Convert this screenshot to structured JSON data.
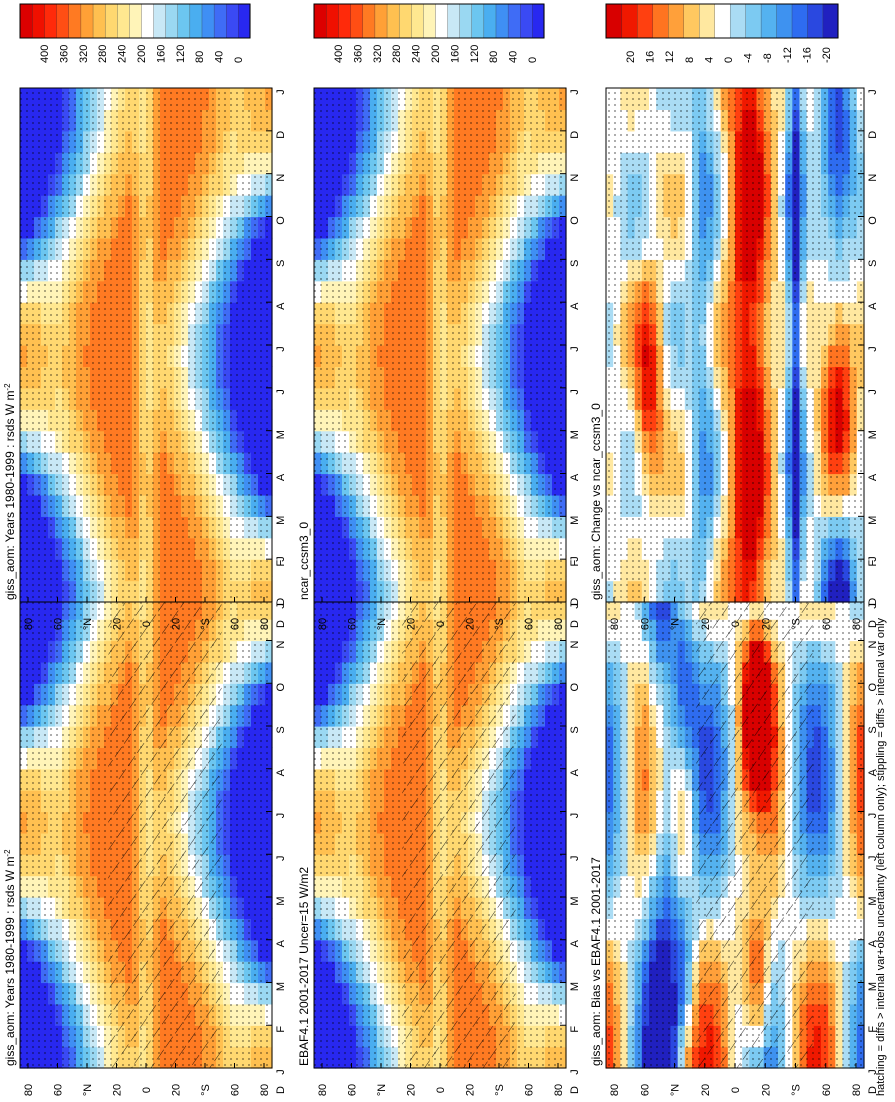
{
  "footer_note": "hatching = diffs > internal var+obs uncertainty (left column only); stippling = diffs > internal var only",
  "palette": {
    "absolute": [
      "#2828f0",
      "#3a4af4",
      "#3f6cf6",
      "#3f8ff4",
      "#4aaef0",
      "#6cc6f0",
      "#9ad8f2",
      "#c8e8f6",
      "#ffffff",
      "#fff4b8",
      "#ffe890",
      "#ffd870",
      "#ffc050",
      "#ffa036",
      "#ff7a22",
      "#ff4e14",
      "#ff2a0a",
      "#f01000",
      "#dc0000"
    ],
    "difference": [
      "#2020c0",
      "#2a48e0",
      "#2e6cf0",
      "#3e92f0",
      "#54b2f0",
      "#7ccaf2",
      "#aadcf4",
      "#ffffff",
      "#ffe8a0",
      "#ffc860",
      "#ffa03a",
      "#ff7420",
      "#ff4010",
      "#f01800",
      "#d80000"
    ]
  },
  "chart_data": [
    {
      "type": "heatmap",
      "title": "giss_aom: Years 1980-1999 : rsds W m",
      "title_sup": "-2",
      "variable": "rsds",
      "x_ticks": [
        "J",
        "F",
        "M",
        "A",
        "M",
        "J",
        "J",
        "A",
        "S",
        "O",
        "N",
        "D",
        "J"
      ],
      "y_ticks": [
        "80",
        "60",
        "°N",
        "20",
        "0",
        "20",
        "°S",
        "60",
        "80"
      ],
      "y_corner_label": "D",
      "colorbar": {
        "labels": [
          "400",
          "360",
          "320",
          "280",
          "240",
          "200",
          "160",
          "120",
          "80",
          "40",
          "0"
        ],
        "range": [
          0,
          420
        ]
      },
      "stippling": true,
      "hatching": true
    },
    {
      "type": "heatmap",
      "title": "giss_aom: Years 1980-1999 : rsds W m",
      "title_sup": "-2",
      "variable": "rsds",
      "x_ticks": [
        "J",
        "F",
        "M",
        "A",
        "M",
        "J",
        "J",
        "A",
        "S",
        "O",
        "N",
        "D",
        "J"
      ],
      "y_ticks": [
        "80",
        "60",
        "°N",
        "20",
        "0",
        "20",
        "°S",
        "60",
        "80"
      ],
      "y_corner_label": "D",
      "colorbar": {
        "labels": [
          "400",
          "360",
          "320",
          "280",
          "240",
          "200",
          "160",
          "120",
          "80",
          "40",
          "0"
        ],
        "range": [
          0,
          420
        ]
      },
      "stippling": true,
      "hatching": false
    },
    {
      "type": "heatmap",
      "title": "EBAF4.1 2001-2017 Uncer=15 W/m2",
      "title_sup": "",
      "variable": "rsds",
      "x_ticks": [
        "J",
        "F",
        "M",
        "A",
        "M",
        "J",
        "J",
        "A",
        "S",
        "O",
        "N",
        "D",
        "J"
      ],
      "y_ticks": [
        "80",
        "60",
        "°N",
        "20",
        "0",
        "20",
        "°S",
        "60",
        "80"
      ],
      "y_corner_label": "D",
      "colorbar": {
        "labels": [
          "400",
          "360",
          "320",
          "280",
          "240",
          "200",
          "160",
          "120",
          "80",
          "40",
          "0"
        ],
        "range": [
          0,
          420
        ]
      },
      "stippling": true,
      "hatching": true
    },
    {
      "type": "heatmap",
      "title": "ncar_ccsm3_0",
      "title_sup": "",
      "variable": "rsds",
      "x_ticks": [
        "J",
        "F",
        "M",
        "A",
        "M",
        "J",
        "J",
        "A",
        "S",
        "O",
        "N",
        "D",
        "J"
      ],
      "y_ticks": [
        "80",
        "60",
        "°N",
        "20",
        "0",
        "20",
        "°S",
        "60",
        "80"
      ],
      "y_corner_label": "D",
      "colorbar": {
        "labels": [
          "400",
          "360",
          "320",
          "280",
          "240",
          "200",
          "160",
          "120",
          "80",
          "40",
          "0"
        ],
        "range": [
          0,
          420
        ]
      },
      "stippling": true,
      "hatching": false
    },
    {
      "type": "heatmap",
      "title": "giss_aom: Bias vs EBAF4.1 2001-2017",
      "title_sup": "",
      "variable": "rsds difference",
      "x_ticks": [
        "J",
        "F",
        "M",
        "A",
        "M",
        "J",
        "J",
        "A",
        "S",
        "O",
        "N",
        "D",
        "J"
      ],
      "y_ticks": [
        "80",
        "60",
        "°N",
        "20",
        "0",
        "20",
        "°S",
        "60",
        "80"
      ],
      "y_corner_label": "D",
      "colorbar": {
        "labels": [
          "20",
          "16",
          "12",
          "8",
          "4",
          "0",
          "-4",
          "-8",
          "-12",
          "-16",
          "-20"
        ],
        "range": [
          -22,
          22
        ]
      },
      "stippling": true,
      "hatching": true
    },
    {
      "type": "heatmap",
      "title": "giss_aom: Change vs ncar_ccsm3_0",
      "title_sup": "",
      "variable": "rsds difference",
      "x_ticks": [
        "J",
        "F",
        "M",
        "A",
        "M",
        "J",
        "J",
        "A",
        "S",
        "O",
        "N",
        "D",
        "J"
      ],
      "y_ticks": [
        "80",
        "60",
        "°N",
        "20",
        "0",
        "20",
        "°S",
        "60",
        "80"
      ],
      "y_corner_label": "D",
      "colorbar": {
        "labels": [
          "20",
          "16",
          "12",
          "8",
          "4",
          "0",
          "-4",
          "-8",
          "-12",
          "-16",
          "-20"
        ],
        "range": [
          -22,
          22
        ]
      },
      "stippling": true,
      "hatching": false
    }
  ]
}
